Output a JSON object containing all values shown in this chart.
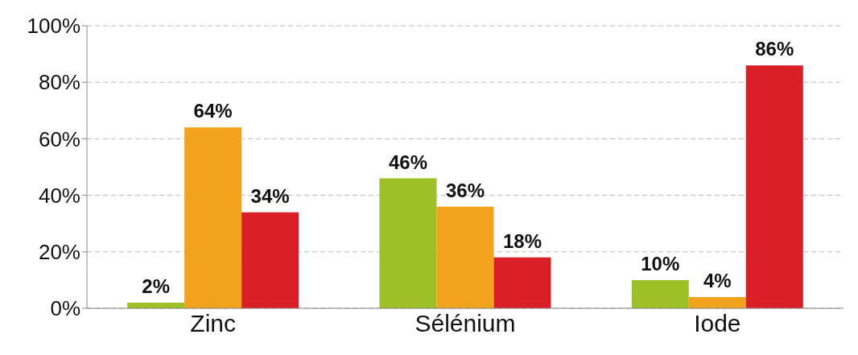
{
  "chart_data": {
    "type": "bar",
    "categories": [
      "Zinc",
      "Sélénium",
      "Iode"
    ],
    "series": [
      {
        "color": "#9cc026",
        "values": [
          2,
          46,
          10
        ],
        "value_labels": [
          "2%",
          "46%",
          "10%"
        ]
      },
      {
        "color": "#f2a21c",
        "values": [
          64,
          36,
          4
        ],
        "value_labels": [
          "64%",
          "36%",
          "4%"
        ]
      },
      {
        "color": "#d81f26",
        "values": [
          34,
          18,
          86
        ],
        "value_labels": [
          "34%",
          "18%",
          "86%"
        ]
      }
    ],
    "ylim": [
      0,
      100
    ],
    "yticks": [
      {
        "value": 0,
        "label": "0%"
      },
      {
        "value": 20,
        "label": "20%"
      },
      {
        "value": 40,
        "label": "40%"
      },
      {
        "value": 60,
        "label": "60%"
      },
      {
        "value": 80,
        "label": "80%"
      },
      {
        "value": 100,
        "label": "100%"
      }
    ],
    "grid": "y",
    "legend": false
  }
}
